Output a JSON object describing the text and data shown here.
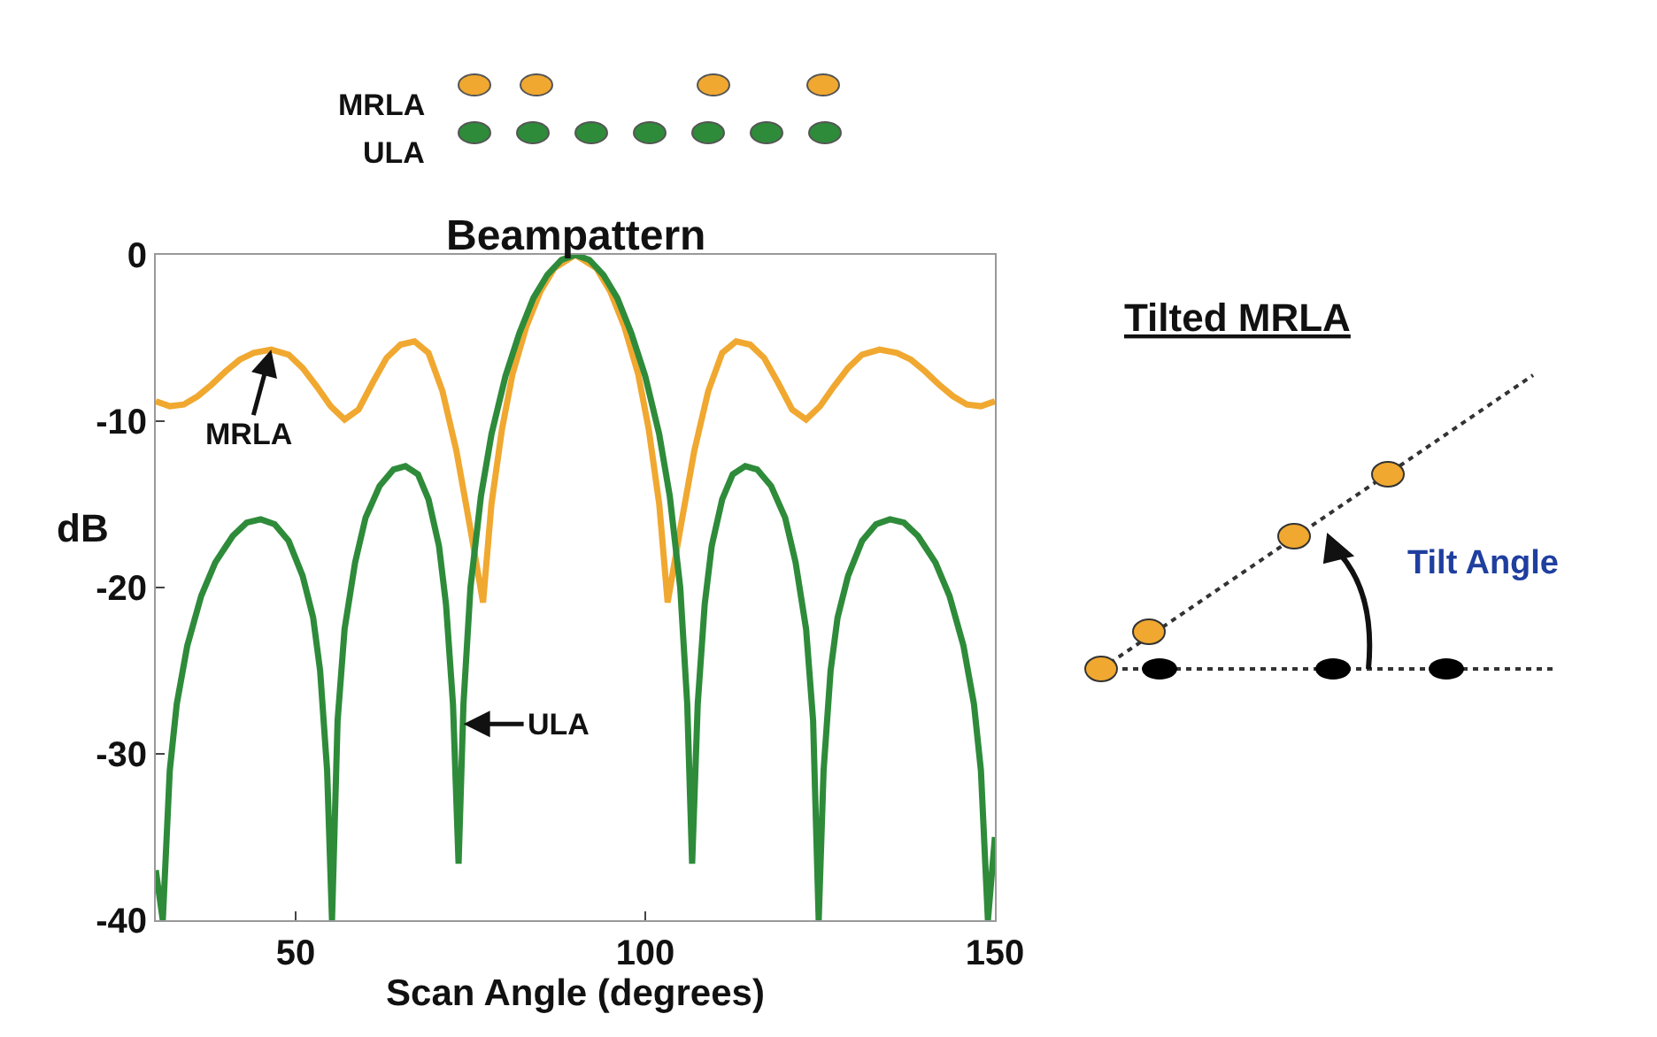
{
  "chart_data": {
    "type": "line",
    "title": "Beampattern",
    "xlabel": "Scan Angle (degrees)",
    "ylabel": "dB",
    "xlim": [
      30,
      150
    ],
    "xticks": [
      50,
      100,
      150
    ],
    "ylim": [
      -40,
      0
    ],
    "yticks": [
      0,
      -10,
      -20,
      -30,
      -40
    ],
    "legend": "top",
    "marker": "none",
    "line_style": "solid",
    "series": [
      {
        "name": "MRLA",
        "color": "#f0a830",
        "x": [
          30,
          32,
          34,
          36,
          38,
          40,
          42,
          44,
          46.5,
          49,
          51,
          53,
          55,
          57,
          59,
          61,
          63,
          65,
          67,
          69,
          71,
          73,
          75,
          76.8,
          78,
          79.5,
          81,
          83,
          85,
          87,
          90,
          93,
          95,
          97,
          99,
          100.5,
          102,
          103.2,
          105,
          107,
          109,
          111,
          113,
          115,
          117,
          119,
          121,
          123,
          125,
          127,
          129,
          131,
          133.5,
          136,
          138,
          140,
          142,
          144,
          146,
          148,
          150
        ],
        "values": [
          -8.8,
          -9.1,
          -9.0,
          -8.5,
          -7.8,
          -7.0,
          -6.3,
          -5.9,
          -5.7,
          -6.0,
          -6.8,
          -7.9,
          -9.1,
          -9.9,
          -9.3,
          -7.7,
          -6.2,
          -5.4,
          -5.2,
          -5.9,
          -8.2,
          -11.8,
          -16.5,
          -20.9,
          -15,
          -10.5,
          -7.2,
          -4.3,
          -2.2,
          -0.8,
          0,
          -0.8,
          -2.2,
          -4.3,
          -7.2,
          -10.5,
          -15,
          -20.9,
          -16.5,
          -11.8,
          -8.2,
          -5.9,
          -5.2,
          -5.4,
          -6.2,
          -7.7,
          -9.3,
          -9.9,
          -9.1,
          -7.9,
          -6.8,
          -6.0,
          -5.7,
          -5.9,
          -6.3,
          -7.0,
          -7.8,
          -8.5,
          -9.0,
          -9.1,
          -8.8
        ]
      },
      {
        "name": "ULA",
        "color": "#2e8b3a",
        "x": [
          30,
          31,
          32,
          33,
          34.5,
          36.5,
          38.5,
          41,
          43,
          45,
          47,
          49,
          51,
          52.5,
          53.5,
          54.5,
          55.2,
          56,
          57,
          58.5,
          60,
          62,
          64,
          65.7,
          67.5,
          69,
          70.5,
          71.5,
          72.5,
          73.3,
          74,
          75,
          76.5,
          78,
          80,
          82,
          84,
          86,
          88,
          90,
          92,
          94,
          96,
          98,
          100,
          102,
          103.5,
          105,
          106,
          106.7,
          107.5,
          108.5,
          109.5,
          111,
          112.5,
          114.3,
          116,
          118,
          120,
          121.5,
          123,
          124,
          124.8,
          125.5,
          126.5,
          127.5,
          129,
          131,
          133,
          135,
          137,
          139,
          141.5,
          143.5,
          145.5,
          147,
          148,
          149,
          150
        ],
        "values": [
          -37,
          -40,
          -31,
          -27,
          -23.5,
          -20.5,
          -18.5,
          -16.9,
          -16.1,
          -15.9,
          -16.2,
          -17.2,
          -19.3,
          -21.8,
          -25,
          -31,
          -40,
          -28,
          -22.5,
          -18.5,
          -15.8,
          -13.9,
          -12.9,
          -12.7,
          -13.2,
          -14.7,
          -17.5,
          -21,
          -27,
          -36.6,
          -27,
          -20,
          -14.5,
          -10.8,
          -7.3,
          -4.7,
          -2.6,
          -1.2,
          -0.3,
          0,
          -0.3,
          -1.2,
          -2.6,
          -4.7,
          -7.3,
          -10.8,
          -14.5,
          -20,
          -27,
          -36.6,
          -27,
          -21,
          -17.5,
          -14.7,
          -13.2,
          -12.7,
          -12.9,
          -13.9,
          -15.8,
          -18.5,
          -22.5,
          -28,
          -40,
          -31,
          -25,
          -21.8,
          -19.3,
          -17.2,
          -16.2,
          -15.9,
          -16.1,
          -16.9,
          -18.5,
          -20.5,
          -23.5,
          -27,
          -31,
          -40,
          -35
        ]
      }
    ],
    "annotations": [
      {
        "text": "MRLA",
        "x": 46.5,
        "y": -5.7
      },
      {
        "text": "ULA",
        "x": 74,
        "y": -28.2
      },
      "Tilted MRLA",
      "Tilt Angle"
    ]
  }
}
